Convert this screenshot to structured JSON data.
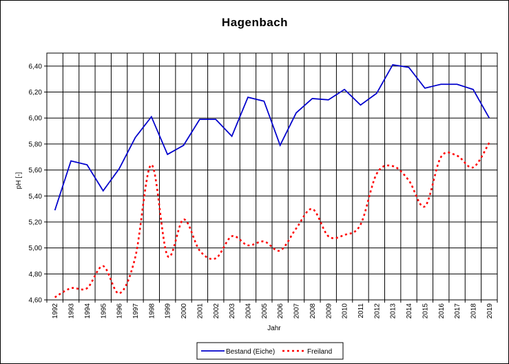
{
  "chart_data": {
    "type": "line",
    "title": "Hagenbach",
    "xlabel": "Jahr",
    "ylabel": "pH [-]",
    "ylim": [
      4.6,
      6.5
    ],
    "yticks": [
      4.6,
      4.8,
      5.0,
      5.2,
      5.4,
      5.6,
      5.8,
      6.0,
      6.2,
      6.4
    ],
    "ytick_labels": [
      "4,60",
      "4,80",
      "5,00",
      "5,20",
      "5,40",
      "5,60",
      "5,80",
      "6,00",
      "6,20",
      "6,40"
    ],
    "grid": true,
    "legend_position": "bottom",
    "categories": [
      "1992",
      "1993",
      "1994",
      "1995",
      "1996",
      "1997",
      "1998",
      "1999",
      "2000",
      "2001",
      "2002",
      "2003",
      "2004",
      "2005",
      "2006",
      "2007",
      "2008",
      "2009",
      "2010",
      "2011",
      "2012",
      "2013",
      "2014",
      "2015",
      "2016",
      "2017",
      "2018",
      "2019"
    ],
    "series": [
      {
        "name": "Bestand (Eiche)",
        "color": "#0000cc",
        "style": "solid",
        "values": [
          5.29,
          5.67,
          5.64,
          5.44,
          5.61,
          5.85,
          6.01,
          5.72,
          5.79,
          5.99,
          5.99,
          5.86,
          6.16,
          6.13,
          5.79,
          6.04,
          6.15,
          6.14,
          6.22,
          6.1,
          6.19,
          6.41,
          6.39,
          6.23,
          6.26,
          6.26,
          6.22,
          6.0
        ]
      },
      {
        "name": "Freiland",
        "color": "#ff0000",
        "style": "dotted",
        "values": [
          4.62,
          4.69,
          4.69,
          4.86,
          4.65,
          4.93,
          5.64,
          4.94,
          5.22,
          4.98,
          4.92,
          5.09,
          5.02,
          5.05,
          4.98,
          5.15,
          5.3,
          5.09,
          5.1,
          5.18,
          5.57,
          5.63,
          5.52,
          5.32,
          5.7,
          5.71,
          5.62,
          5.81
        ]
      }
    ]
  }
}
